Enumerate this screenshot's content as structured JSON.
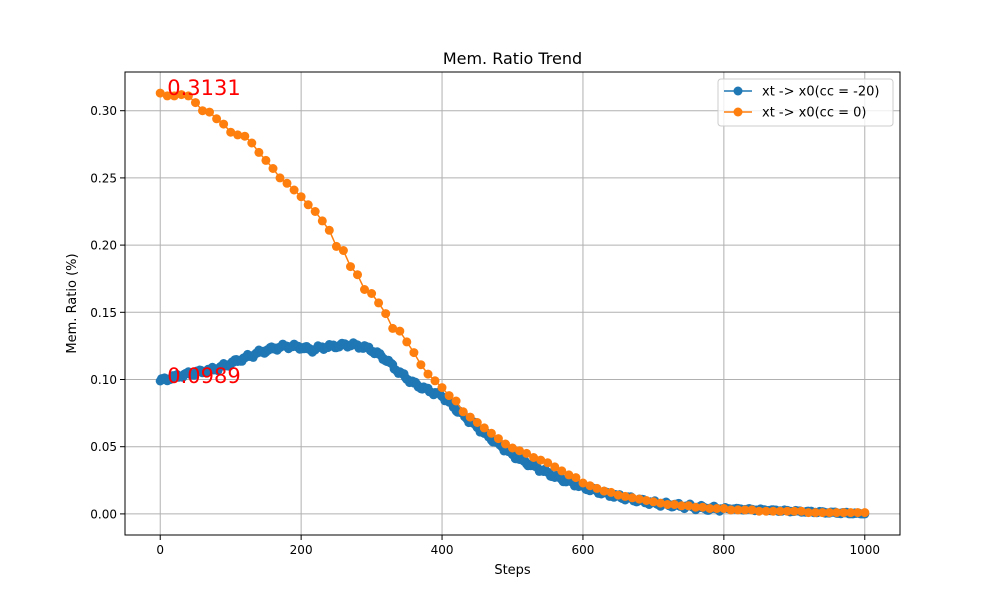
{
  "chart_data": {
    "type": "line",
    "title": "Mem. Ratio Trend",
    "xlabel": "Steps",
    "ylabel": "Mem. Ratio (%)",
    "xlim": [
      -50,
      1050
    ],
    "ylim": [
      -0.0157,
      0.3288
    ],
    "xticks": [
      0,
      200,
      400,
      600,
      800,
      1000
    ],
    "yticks": [
      0.0,
      0.05,
      0.1,
      0.15,
      0.2,
      0.25,
      0.3
    ],
    "xtick_labels": [
      "0",
      "200",
      "400",
      "600",
      "800",
      "1000"
    ],
    "ytick_labels": [
      "0.00",
      "0.05",
      "0.10",
      "0.15",
      "0.20",
      "0.25",
      "0.30"
    ],
    "grid": true,
    "legend_position": "top-right",
    "series": [
      {
        "name": "xt -> x0(cc = -20)",
        "color": "#1f77b4",
        "marker": "circle",
        "anchors": [
          [
            0,
            0.0989
          ],
          [
            20,
            0.102
          ],
          [
            40,
            0.104
          ],
          [
            60,
            0.106
          ],
          [
            80,
            0.108
          ],
          [
            100,
            0.112
          ],
          [
            120,
            0.116
          ],
          [
            140,
            0.12
          ],
          [
            160,
            0.123
          ],
          [
            180,
            0.125
          ],
          [
            200,
            0.124
          ],
          [
            215,
            0.122
          ],
          [
            230,
            0.124
          ],
          [
            250,
            0.125
          ],
          [
            270,
            0.126
          ],
          [
            290,
            0.124
          ],
          [
            300,
            0.122
          ],
          [
            320,
            0.115
          ],
          [
            340,
            0.105
          ],
          [
            360,
            0.097
          ],
          [
            380,
            0.092
          ],
          [
            400,
            0.088
          ],
          [
            420,
            0.078
          ],
          [
            440,
            0.069
          ],
          [
            460,
            0.06
          ],
          [
            480,
            0.052
          ],
          [
            500,
            0.044
          ],
          [
            520,
            0.038
          ],
          [
            540,
            0.033
          ],
          [
            560,
            0.028
          ],
          [
            580,
            0.024
          ],
          [
            600,
            0.02
          ],
          [
            620,
            0.017
          ],
          [
            640,
            0.014
          ],
          [
            660,
            0.012
          ],
          [
            680,
            0.01
          ],
          [
            700,
            0.008
          ],
          [
            720,
            0.007
          ],
          [
            740,
            0.006
          ],
          [
            760,
            0.005
          ],
          [
            780,
            0.004
          ],
          [
            800,
            0.004
          ],
          [
            850,
            0.003
          ],
          [
            900,
            0.002
          ],
          [
            950,
            0.001
          ],
          [
            1000,
            0.0
          ]
        ]
      },
      {
        "name": "xt -> x0(cc = 0)",
        "color": "#ff7f0e",
        "marker": "circle",
        "points": [
          [
            0,
            0.3131
          ],
          [
            10,
            0.311
          ],
          [
            20,
            0.311
          ],
          [
            30,
            0.312
          ],
          [
            40,
            0.311
          ],
          [
            50,
            0.306
          ],
          [
            60,
            0.3
          ],
          [
            70,
            0.299
          ],
          [
            80,
            0.294
          ],
          [
            90,
            0.29
          ],
          [
            100,
            0.284
          ],
          [
            110,
            0.282
          ],
          [
            120,
            0.281
          ],
          [
            130,
            0.276
          ],
          [
            140,
            0.269
          ],
          [
            150,
            0.263
          ],
          [
            160,
            0.257
          ],
          [
            170,
            0.25
          ],
          [
            180,
            0.246
          ],
          [
            190,
            0.241
          ],
          [
            200,
            0.236
          ],
          [
            210,
            0.23
          ],
          [
            220,
            0.225
          ],
          [
            230,
            0.218
          ],
          [
            240,
            0.211
          ],
          [
            250,
            0.199
          ],
          [
            260,
            0.196
          ],
          [
            270,
            0.184
          ],
          [
            280,
            0.178
          ],
          [
            290,
            0.167
          ],
          [
            300,
            0.164
          ],
          [
            310,
            0.157
          ],
          [
            320,
            0.149
          ],
          [
            330,
            0.138
          ],
          [
            340,
            0.136
          ],
          [
            350,
            0.128
          ],
          [
            360,
            0.12
          ],
          [
            370,
            0.111
          ],
          [
            380,
            0.104
          ],
          [
            390,
            0.099
          ],
          [
            400,
            0.094
          ],
          [
            410,
            0.088
          ],
          [
            420,
            0.084
          ],
          [
            430,
            0.076
          ],
          [
            440,
            0.072
          ],
          [
            450,
            0.068
          ],
          [
            460,
            0.064
          ],
          [
            470,
            0.06
          ],
          [
            480,
            0.056
          ],
          [
            490,
            0.052
          ],
          [
            500,
            0.049
          ],
          [
            510,
            0.047
          ],
          [
            520,
            0.045
          ],
          [
            530,
            0.042
          ],
          [
            540,
            0.04
          ],
          [
            550,
            0.038
          ],
          [
            560,
            0.035
          ],
          [
            570,
            0.032
          ],
          [
            580,
            0.029
          ],
          [
            590,
            0.027
          ],
          [
            600,
            0.023
          ],
          [
            610,
            0.021
          ],
          [
            620,
            0.019
          ],
          [
            630,
            0.017
          ],
          [
            640,
            0.016
          ],
          [
            650,
            0.014
          ],
          [
            660,
            0.013
          ],
          [
            670,
            0.012
          ],
          [
            680,
            0.011
          ],
          [
            690,
            0.01
          ],
          [
            700,
            0.009
          ],
          [
            710,
            0.008
          ],
          [
            720,
            0.007
          ],
          [
            730,
            0.007
          ],
          [
            740,
            0.006
          ],
          [
            750,
            0.006
          ],
          [
            760,
            0.005
          ],
          [
            770,
            0.005
          ],
          [
            780,
            0.004
          ],
          [
            790,
            0.004
          ],
          [
            800,
            0.004
          ],
          [
            810,
            0.003
          ],
          [
            820,
            0.003
          ],
          [
            830,
            0.003
          ],
          [
            840,
            0.003
          ],
          [
            850,
            0.002
          ],
          [
            860,
            0.002
          ],
          [
            870,
            0.002
          ],
          [
            880,
            0.002
          ],
          [
            890,
            0.002
          ],
          [
            900,
            0.002
          ],
          [
            910,
            0.002
          ],
          [
            920,
            0.001
          ],
          [
            930,
            0.001
          ],
          [
            940,
            0.001
          ],
          [
            950,
            0.001
          ],
          [
            960,
            0.001
          ],
          [
            970,
            0.001
          ],
          [
            980,
            0.001
          ],
          [
            990,
            0.001
          ],
          [
            1000,
            0.001
          ]
        ]
      }
    ],
    "annotations": [
      {
        "text": "0.3131",
        "x": 10,
        "y": 0.3131,
        "color": "#ff0000"
      },
      {
        "text": "0.0989",
        "x": 10,
        "y": 0.0989,
        "color": "#ff0000"
      }
    ]
  }
}
